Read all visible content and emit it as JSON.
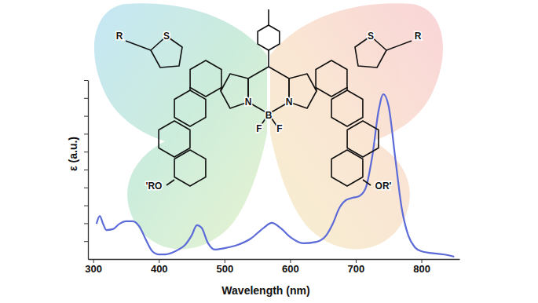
{
  "chart_data": {
    "type": "line",
    "x_label": "Wavelength (nm)",
    "y_label": "ε (a.u.)",
    "annotations": [
      "R",
      "S",
      "N",
      "B",
      "F",
      "F",
      "N",
      "S",
      "R",
      "'RO",
      "OR'"
    ],
    "color": "#5c6bd8",
    "xlim": [
      292,
      858
    ],
    "xticks": [
      300,
      400,
      500,
      600,
      700,
      800
    ],
    "ylim": [
      0,
      1
    ],
    "yticks": [
      0.1,
      0.2,
      0.3,
      0.4,
      0.5,
      0.6,
      0.7,
      0.8,
      0.9,
      1.0
    ],
    "tick_labels": "x",
    "grid": false,
    "x": [
      305,
      310,
      315,
      320,
      330,
      340,
      350,
      360,
      370,
      380,
      390,
      400,
      410,
      420,
      430,
      440,
      450,
      458,
      465,
      475,
      485,
      500,
      520,
      540,
      560,
      572,
      585,
      600,
      620,
      640,
      655,
      665,
      675,
      685,
      695,
      705,
      715,
      725,
      735,
      742,
      750,
      760,
      770,
      780,
      790,
      800,
      820,
      840,
      850
    ],
    "values": [
      0.197,
      0.241,
      0.197,
      0.162,
      0.167,
      0.197,
      0.211,
      0.211,
      0.184,
      0.11,
      0.044,
      0.026,
      0.026,
      0.035,
      0.053,
      0.079,
      0.132,
      0.189,
      0.175,
      0.088,
      0.053,
      0.061,
      0.079,
      0.114,
      0.175,
      0.202,
      0.175,
      0.123,
      0.088,
      0.096,
      0.132,
      0.197,
      0.285,
      0.329,
      0.342,
      0.351,
      0.395,
      0.57,
      0.833,
      0.921,
      0.855,
      0.57,
      0.285,
      0.132,
      0.066,
      0.044,
      0.031,
      0.022,
      0.013
    ]
  }
}
